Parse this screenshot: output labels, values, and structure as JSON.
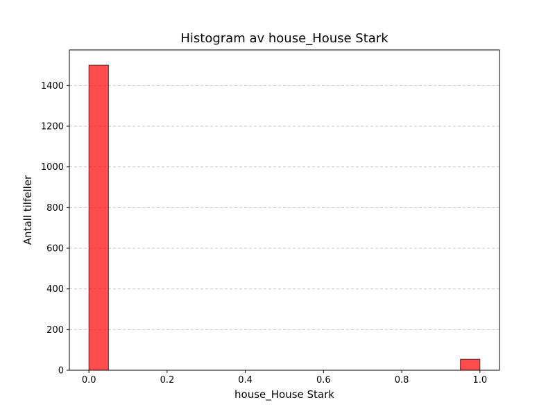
{
  "chart_data": {
    "type": "bar",
    "title": "Histogram av house_House Stark",
    "xlabel": "house_House Stark",
    "ylabel": "Antall tilfeller",
    "xlim": [
      -0.05,
      1.05
    ],
    "ylim": [
      0,
      1575
    ],
    "x_ticks": [
      0.0,
      0.2,
      0.4,
      0.6,
      0.8,
      1.0
    ],
    "x_tick_labels": [
      "0.0",
      "0.2",
      "0.4",
      "0.6",
      "0.8",
      "1.0"
    ],
    "y_ticks": [
      0,
      200,
      400,
      600,
      800,
      1000,
      1200,
      1400
    ],
    "y_tick_labels": [
      "0",
      "200",
      "400",
      "600",
      "800",
      "1000",
      "1200",
      "1400"
    ],
    "bins": [
      {
        "start": 0.0,
        "end": 0.05,
        "value": 1500
      },
      {
        "start": 0.95,
        "end": 1.0,
        "value": 54
      }
    ],
    "grid": "y, dashed",
    "colors": {
      "bar_fill": "#ff0000",
      "bar_opacity": 0.7,
      "bar_edge": "#000000",
      "grid": "#c8c8c8"
    }
  }
}
